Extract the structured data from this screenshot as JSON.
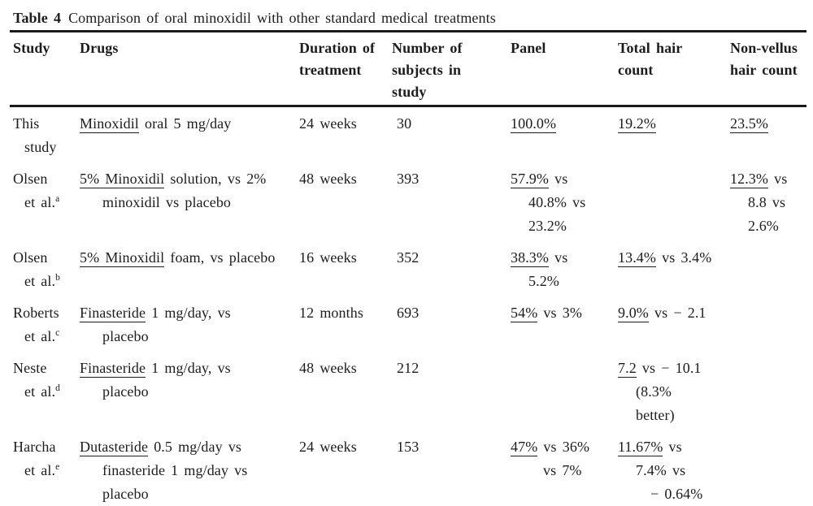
{
  "colors": {
    "text": "#1c1c1c",
    "rule": "#1a1a1a",
    "background": "#ffffff"
  },
  "title": {
    "label": "Table 4",
    "text": "Comparison of oral minoxidil with other standard medical treatments"
  },
  "table": {
    "columns": [
      {
        "key": "study",
        "label": "Study"
      },
      {
        "key": "drugs",
        "label": "Drugs"
      },
      {
        "key": "duration",
        "label": "Duration of treatment"
      },
      {
        "key": "subjects",
        "label": "Number of subjects in study"
      },
      {
        "key": "panel",
        "label": "Panel"
      },
      {
        "key": "total_hair",
        "label": "Total hair count"
      },
      {
        "key": "non_vellus",
        "label": "Non-vellus hair count"
      }
    ],
    "rows": [
      {
        "study": [
          {
            "t": "This"
          },
          {
            "t": "study",
            "in": 1
          }
        ],
        "drugs": [
          {
            "u": "Minoxidil",
            "t": " oral 5 mg/day"
          }
        ],
        "duration": [
          {
            "t": "24 weeks"
          }
        ],
        "subjects": [
          {
            "t": "30"
          }
        ],
        "panel": [
          {
            "u": "100.0%"
          }
        ],
        "total_hair": [
          {
            "u": "19.2%"
          }
        ],
        "non_vellus": [
          {
            "u": "23.5%"
          }
        ]
      },
      {
        "study": [
          {
            "t": "Olsen"
          },
          {
            "t": "et al.",
            "sup": "a",
            "in": 1
          }
        ],
        "drugs": [
          {
            "u": "5% Minoxidil",
            "t": " solution, vs 2%"
          },
          {
            "t": "minoxidil vs placebo",
            "in": 1
          }
        ],
        "duration": [
          {
            "t": "48 weeks"
          }
        ],
        "subjects": [
          {
            "t": "393"
          }
        ],
        "panel": [
          {
            "u": "57.9%",
            "t": " vs"
          },
          {
            "t": "40.8% vs",
            "in": 1
          },
          {
            "t": "23.2%",
            "in": 1
          }
        ],
        "total_hair": [],
        "non_vellus": [
          {
            "u": "12.3%",
            "t": " vs"
          },
          {
            "t": "8.8 vs",
            "in": 1
          },
          {
            "t": "2.6%",
            "in": 1
          }
        ]
      },
      {
        "study": [
          {
            "t": "Olsen"
          },
          {
            "t": "et al.",
            "sup": "b",
            "in": 1
          }
        ],
        "drugs": [
          {
            "u": "5% Minoxidil",
            "t": " foam, vs placebo"
          }
        ],
        "duration": [
          {
            "t": "16 weeks"
          }
        ],
        "subjects": [
          {
            "t": "352"
          }
        ],
        "panel": [
          {
            "u": "38.3%",
            "t": " vs"
          },
          {
            "t": "5.2%",
            "in": 1
          }
        ],
        "total_hair": [
          {
            "u": "13.4%",
            "t": " vs 3.4%"
          }
        ],
        "non_vellus": []
      },
      {
        "study": [
          {
            "t": "Roberts"
          },
          {
            "t": "et al.",
            "sup": "c",
            "in": 1
          }
        ],
        "drugs": [
          {
            "u": "Finasteride",
            "t": " 1 mg/day, vs"
          },
          {
            "t": "placebo",
            "in": 1
          }
        ],
        "duration": [
          {
            "t": "12 months"
          }
        ],
        "subjects": [
          {
            "t": "693"
          }
        ],
        "panel": [
          {
            "u": "54%",
            "t": " vs 3%"
          }
        ],
        "total_hair": [
          {
            "u": "9.0%",
            "t": " vs − 2.1"
          }
        ],
        "non_vellus": []
      },
      {
        "study": [
          {
            "t": "Neste"
          },
          {
            "t": "et al.",
            "sup": "d",
            "in": 1
          }
        ],
        "drugs": [
          {
            "u": "Finasteride",
            "t": " 1 mg/day, vs"
          },
          {
            "t": "placebo",
            "in": 1
          }
        ],
        "duration": [
          {
            "t": "48 weeks"
          }
        ],
        "subjects": [
          {
            "t": "212"
          }
        ],
        "panel": [],
        "total_hair": [
          {
            "u": "7.2",
            "t": " vs − 10.1"
          },
          {
            "t": "(8.3%",
            "in": 1
          },
          {
            "t": "better)",
            "in": 1
          }
        ],
        "non_vellus": []
      },
      {
        "study": [
          {
            "t": "Harcha"
          },
          {
            "t": "et al.",
            "sup": "e",
            "in": 1
          }
        ],
        "drugs": [
          {
            "u": "Dutasteride",
            "t": " 0.5 mg/day vs"
          },
          {
            "t": "finasteride 1 mg/day vs",
            "in": 1
          },
          {
            "t": "placebo",
            "in": 1
          }
        ],
        "duration": [
          {
            "t": "24 weeks"
          }
        ],
        "subjects": [
          {
            "t": "153"
          }
        ],
        "panel": [
          {
            "u": "47%",
            "t": " vs 36%"
          },
          {
            "t": "vs 7%",
            "in": 2
          }
        ],
        "total_hair": [
          {
            "u": "11.67%",
            "t": " vs"
          },
          {
            "t": "7.4% vs",
            "in": 1
          },
          {
            "t": "− 0.64%",
            "in": 2
          }
        ],
        "non_vellus": []
      }
    ]
  }
}
